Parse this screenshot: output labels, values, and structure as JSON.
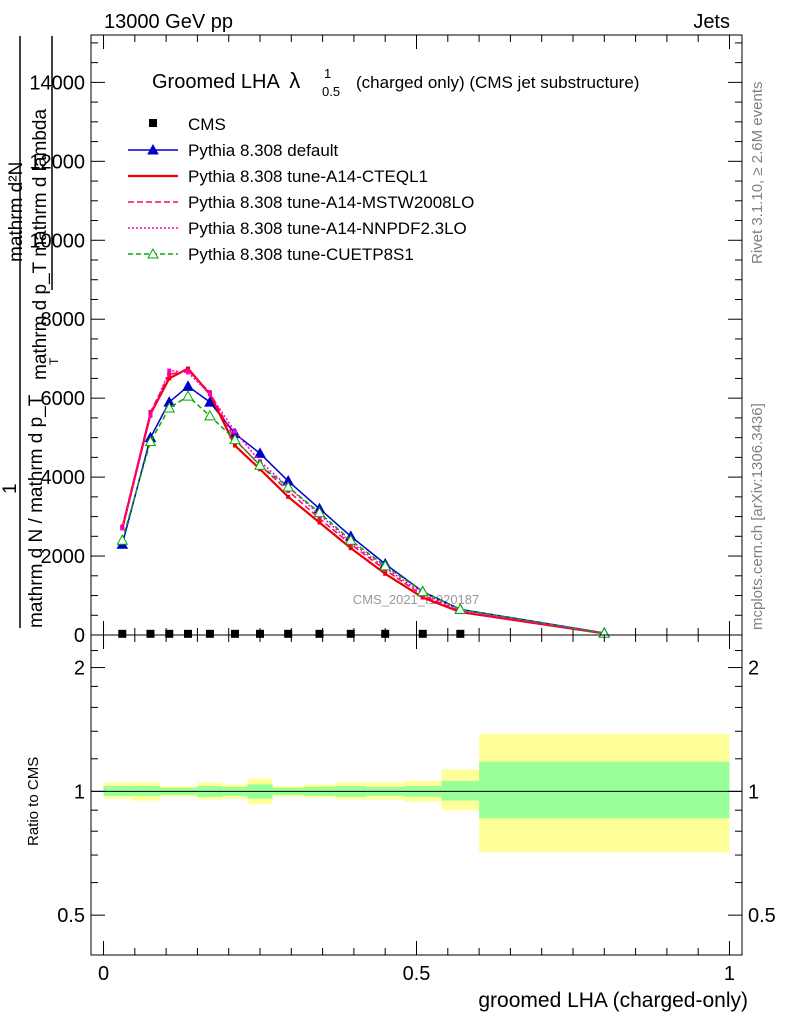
{
  "header": {
    "left": "13000 GeV pp",
    "right": "Jets"
  },
  "side": {
    "rivet": "Rivet 3.1.10, ≥ 2.6M events",
    "mcplots": "mcplots.cern.ch [arXiv:1306.3436]"
  },
  "watermark": "CMS_2021_I1920187",
  "chart_data": [
    {
      "type": "line",
      "title": "Groomed LHA",
      "title_symbol": "λ",
      "title_sup": "1",
      "title_sub": "0.5",
      "subtitle": "(charged only) (CMS jet substructure)",
      "ylabel_frac_top": "mathrm d²N",
      "ylabel_frac_top_cont": "mathrm d p_T mathrm d lambda",
      "ylabel_numerator": "1",
      "ylabel_denominator": "mathrm d N / mathrm d p_T",
      "ylabel_T": "T",
      "xlim": [
        -0.02,
        1.02
      ],
      "ylim": [
        0,
        15200
      ],
      "yticks": [
        0,
        2000,
        4000,
        6000,
        8000,
        10000,
        12000,
        14000
      ],
      "ytick_labels": [
        "0",
        "2000",
        "4000",
        "6000",
        "8000",
        "10000",
        "12000",
        "14000"
      ],
      "legend_position": "top-left",
      "series": [
        {
          "name": "CMS",
          "style": "marker",
          "color": "#000000",
          "x": [
            0.03,
            0.075,
            0.105,
            0.135,
            0.17,
            0.21,
            0.25,
            0.295,
            0.345,
            0.395,
            0.45,
            0.51,
            0.57
          ],
          "y": [
            30,
            30,
            30,
            30,
            30,
            30,
            30,
            30,
            30,
            30,
            30,
            30,
            30
          ]
        },
        {
          "name": "Pythia 8.308 default",
          "style": "solid-triangle",
          "color": "#0000cc",
          "x": [
            0.03,
            0.075,
            0.105,
            0.135,
            0.17,
            0.21,
            0.25,
            0.295,
            0.345,
            0.395,
            0.45,
            0.51,
            0.57,
            0.8
          ],
          "y": [
            2300,
            5000,
            5900,
            6300,
            5900,
            5100,
            4600,
            3900,
            3200,
            2500,
            1800,
            1100,
            650,
            50
          ]
        },
        {
          "name": "Pythia 8.308 tune-A14-CTEQL1",
          "style": "solid",
          "color": "#ee0000",
          "x": [
            0.03,
            0.075,
            0.105,
            0.135,
            0.17,
            0.21,
            0.25,
            0.295,
            0.345,
            0.395,
            0.45,
            0.51,
            0.57,
            0.8
          ],
          "y": [
            2700,
            5600,
            6500,
            6750,
            6100,
            4800,
            4200,
            3500,
            2850,
            2200,
            1550,
            950,
            580,
            40
          ]
        },
        {
          "name": "Pythia 8.308 tune-A14-MSTW2008LO",
          "style": "dashed",
          "color": "#ff0066",
          "x": [
            0.03,
            0.075,
            0.105,
            0.135,
            0.17,
            0.21,
            0.25,
            0.295,
            0.345,
            0.395,
            0.45,
            0.51,
            0.57,
            0.8
          ],
          "y": [
            2750,
            5650,
            6600,
            6700,
            6150,
            4950,
            4300,
            3650,
            2950,
            2300,
            1650,
            1000,
            600,
            40
          ]
        },
        {
          "name": "Pythia 8.308 tune-A14-NNPDF2.3LO",
          "style": "dotted",
          "color": "#ff00cc",
          "x": [
            0.03,
            0.075,
            0.105,
            0.135,
            0.17,
            0.21,
            0.25,
            0.295,
            0.345,
            0.395,
            0.45,
            0.51,
            0.57,
            0.8
          ],
          "y": [
            2700,
            5550,
            6700,
            6650,
            6100,
            5150,
            4400,
            3750,
            3050,
            2350,
            1700,
            1050,
            620,
            40
          ]
        },
        {
          "name": "Pythia 8.308 tune-CUETP8S1",
          "style": "dashed-open-triangle",
          "color": "#00aa00",
          "x": [
            0.03,
            0.075,
            0.105,
            0.135,
            0.17,
            0.21,
            0.25,
            0.295,
            0.345,
            0.395,
            0.45,
            0.51,
            0.57,
            0.8
          ],
          "y": [
            2400,
            4900,
            5750,
            6050,
            5550,
            4950,
            4300,
            3750,
            3100,
            2400,
            1750,
            1100,
            650,
            45
          ]
        }
      ]
    },
    {
      "type": "area",
      "ylabel": "Ratio to CMS",
      "xlabel": "groomed LHA (charged-only)",
      "xlim": [
        -0.02,
        1.02
      ],
      "ylim": [
        0.4,
        2.4
      ],
      "log_scale_y": true,
      "yticks": [
        0.5,
        1,
        2
      ],
      "ytick_labels": [
        "0.5",
        "1",
        "2"
      ],
      "xticks": [
        0,
        0.5,
        1
      ],
      "xtick_labels": [
        "0",
        "0.5",
        "1"
      ],
      "reference_line": 1,
      "inner_band_color": "#99ff99",
      "outer_band_color": "#ffff99",
      "bins": [
        {
          "x0": 0.0,
          "x1": 0.045,
          "in_lo": 0.975,
          "in_hi": 1.03,
          "out_lo": 0.96,
          "out_hi": 1.05
        },
        {
          "x0": 0.045,
          "x1": 0.09,
          "in_lo": 0.975,
          "in_hi": 1.03,
          "out_lo": 0.95,
          "out_hi": 1.05
        },
        {
          "x0": 0.09,
          "x1": 0.12,
          "in_lo": 0.98,
          "in_hi": 1.02,
          "out_lo": 0.97,
          "out_hi": 1.03
        },
        {
          "x0": 0.12,
          "x1": 0.15,
          "in_lo": 0.98,
          "in_hi": 1.02,
          "out_lo": 0.97,
          "out_hi": 1.03
        },
        {
          "x0": 0.15,
          "x1": 0.19,
          "in_lo": 0.97,
          "in_hi": 1.03,
          "out_lo": 0.955,
          "out_hi": 1.05
        },
        {
          "x0": 0.19,
          "x1": 0.23,
          "in_lo": 0.975,
          "in_hi": 1.025,
          "out_lo": 0.96,
          "out_hi": 1.04
        },
        {
          "x0": 0.23,
          "x1": 0.27,
          "in_lo": 0.96,
          "in_hi": 1.04,
          "out_lo": 0.93,
          "out_hi": 1.075
        },
        {
          "x0": 0.27,
          "x1": 0.32,
          "in_lo": 0.98,
          "in_hi": 1.02,
          "out_lo": 0.97,
          "out_hi": 1.03
        },
        {
          "x0": 0.32,
          "x1": 0.37,
          "in_lo": 0.975,
          "in_hi": 1.025,
          "out_lo": 0.965,
          "out_hi": 1.04
        },
        {
          "x0": 0.37,
          "x1": 0.42,
          "in_lo": 0.97,
          "in_hi": 1.03,
          "out_lo": 0.955,
          "out_hi": 1.05
        },
        {
          "x0": 0.42,
          "x1": 0.48,
          "in_lo": 0.975,
          "in_hi": 1.025,
          "out_lo": 0.955,
          "out_hi": 1.05
        },
        {
          "x0": 0.48,
          "x1": 0.54,
          "in_lo": 0.97,
          "in_hi": 1.03,
          "out_lo": 0.945,
          "out_hi": 1.06
        },
        {
          "x0": 0.54,
          "x1": 0.6,
          "in_lo": 0.95,
          "in_hi": 1.06,
          "out_lo": 0.9,
          "out_hi": 1.13
        },
        {
          "x0": 0.6,
          "x1": 1.0,
          "in_lo": 0.86,
          "in_hi": 1.18,
          "out_lo": 0.71,
          "out_hi": 1.38
        }
      ]
    }
  ]
}
